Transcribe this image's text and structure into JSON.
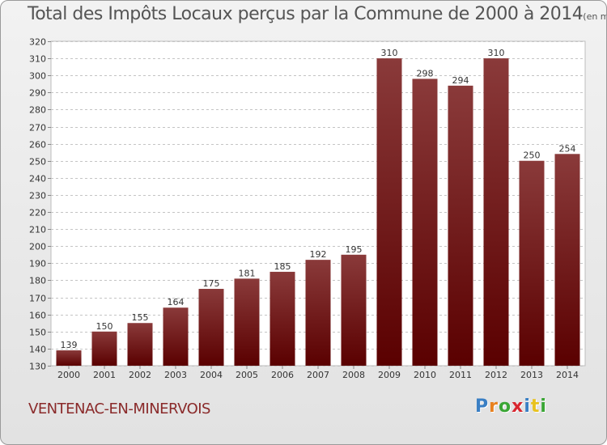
{
  "title": "Total des Impôts Locaux perçus par la Commune de 2000 à 2014",
  "title_unit": "(en milliers d'€)",
  "commune": "VENTENAC-EN-MINERVOIS",
  "logo": {
    "text": "Proxiti",
    "letters": [
      "P",
      "r",
      "o",
      "x",
      "i",
      "t",
      "i"
    ],
    "colors": [
      "#3a7fc4",
      "#e8811f",
      "#3aa635",
      "#d8262f",
      "#3a7fc4",
      "#e8c21f",
      "#3aa635"
    ]
  },
  "bar_color_top": "#8a3a3a",
  "bar_color_bottom": "#5a0000",
  "chart_data": {
    "type": "bar",
    "categories": [
      "2000",
      "2001",
      "2002",
      "2003",
      "2004",
      "2005",
      "2006",
      "2007",
      "2008",
      "2009",
      "2010",
      "2011",
      "2012",
      "2013",
      "2014"
    ],
    "values": [
      139,
      150,
      155,
      164,
      175,
      181,
      185,
      192,
      195,
      310,
      298,
      294,
      310,
      250,
      254
    ],
    "ylim": [
      130,
      320
    ],
    "yticks": [
      130,
      140,
      150,
      160,
      170,
      180,
      190,
      200,
      210,
      220,
      230,
      240,
      250,
      260,
      270,
      280,
      290,
      300,
      310,
      320
    ],
    "xlabel": "",
    "ylabel": "",
    "grid": true
  }
}
